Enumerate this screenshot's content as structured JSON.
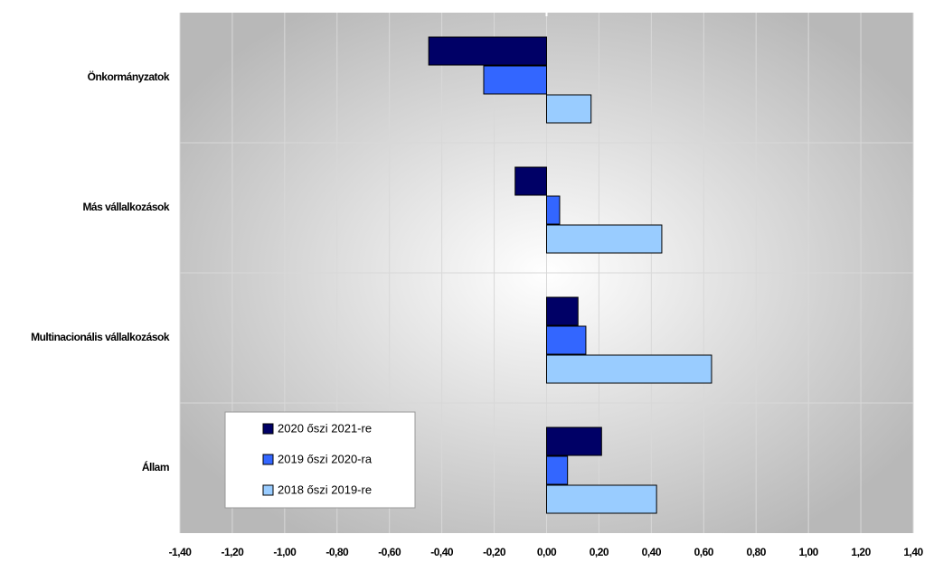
{
  "chart_data": {
    "type": "hbar",
    "categories": [
      "Önkormányzatok",
      "Más vállalkozások",
      "Multinacionális vállalkozások",
      "Állam"
    ],
    "series": [
      {
        "name": "2020 őszi 2021-re",
        "color": "#000066",
        "values": [
          -0.45,
          -0.12,
          0.12,
          0.21
        ]
      },
      {
        "name": "2019 őszi 2020-ra",
        "color": "#3366ff",
        "values": [
          -0.24,
          0.05,
          0.15,
          0.08
        ]
      },
      {
        "name": "2018 őszi 2019-re",
        "color": "#99ccff",
        "values": [
          0.17,
          0.44,
          0.63,
          0.42
        ]
      }
    ],
    "xlim": [
      -1.4,
      1.4
    ],
    "xticks": [
      {
        "value": -1.4,
        "label": "-1,40"
      },
      {
        "value": -1.2,
        "label": "-1,20"
      },
      {
        "value": -1.0,
        "label": "-1,00"
      },
      {
        "value": -0.8,
        "label": "-0,80"
      },
      {
        "value": -0.6,
        "label": "-0,60"
      },
      {
        "value": -0.4,
        "label": "-0,40"
      },
      {
        "value": -0.2,
        "label": "-0,20"
      },
      {
        "value": 0,
        "label": "0,00"
      },
      {
        "value": 0.2,
        "label": "0,20"
      },
      {
        "value": 0.4,
        "label": "0,40"
      },
      {
        "value": 0.6,
        "label": "0,60"
      },
      {
        "value": 0.8,
        "label": "0,80"
      },
      {
        "value": 1.0,
        "label": "1,00"
      },
      {
        "value": 1.2,
        "label": "1,20"
      },
      {
        "value": 1.4,
        "label": "1,40"
      }
    ],
    "grid": true,
    "legend_position": "lower-left"
  }
}
